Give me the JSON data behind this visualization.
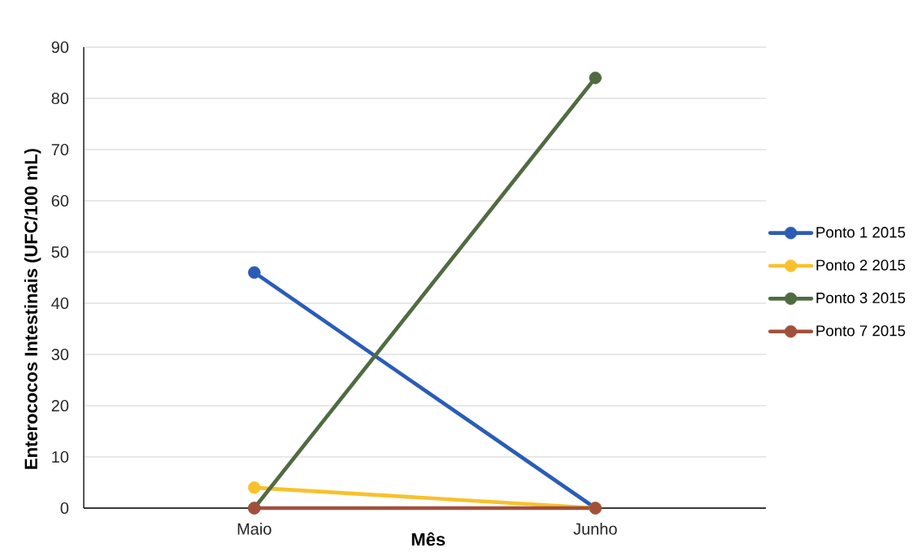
{
  "chart_data": {
    "type": "line",
    "xlabel": "Mês",
    "ylabel": "Enterococos Intestinais (UFC/100 mL)",
    "categories": [
      "Maio",
      "Junho"
    ],
    "series": [
      {
        "name": "Ponto 1 2015",
        "color": "#2a5cb8",
        "values": [
          46,
          0
        ]
      },
      {
        "name": "Ponto 2 2015",
        "color": "#f8c12c",
        "values": [
          4,
          0
        ]
      },
      {
        "name": "Ponto 3 2015",
        "color": "#506b42",
        "values": [
          0,
          84
        ]
      },
      {
        "name": "Ponto 7 2015",
        "color": "#a2503b",
        "values": [
          0,
          0
        ]
      }
    ],
    "ylim": [
      0,
      90
    ],
    "yticks": [
      0,
      10,
      20,
      30,
      40,
      50,
      60,
      70,
      80,
      90
    ],
    "grid": "y",
    "legend": "right",
    "marker": "circle",
    "line_style": "solid"
  }
}
